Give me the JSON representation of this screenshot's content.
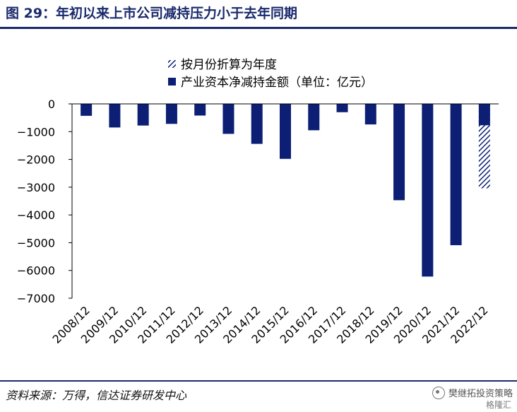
{
  "header": {
    "title": "图 29：年初以来上市公司减持压力小于去年同期"
  },
  "footer": {
    "source": "资料来源：万得，信达证券研发中心",
    "watermark": "樊继拓投资策略",
    "watermark_logo": "格隆汇"
  },
  "colors": {
    "bar": "#0c1f75",
    "title": "#1a2a6c",
    "hatch": "#0c1f75"
  },
  "chart_data": {
    "type": "bar",
    "categories": [
      "2008/12",
      "2009/12",
      "2010/12",
      "2011/12",
      "2012/12",
      "2013/12",
      "2014/12",
      "2015/12",
      "2016/12",
      "2017/12",
      "2018/12",
      "2019/12",
      "2020/12",
      "2021/12",
      "2022/12"
    ],
    "series": [
      {
        "name": "产业资本净减持金额（单位：亿元）",
        "values": [
          -430,
          -850,
          -780,
          -720,
          -420,
          -1080,
          -1440,
          -1980,
          -950,
          -300,
          -740,
          -3470,
          -6220,
          -5090,
          -770
        ]
      },
      {
        "name": "按月份折算为年度",
        "values": [
          null,
          null,
          null,
          null,
          null,
          null,
          null,
          null,
          null,
          null,
          null,
          null,
          null,
          null,
          -3040
        ]
      }
    ],
    "yticks": [
      0,
      -1000,
      -2000,
      -3000,
      -4000,
      -5000,
      -6000,
      -7000
    ],
    "ytick_labels": [
      "0",
      "−1000",
      "−2000",
      "−3000",
      "−4000",
      "−5000",
      "−6000",
      "−7000"
    ],
    "ylim": [
      -7000,
      0
    ],
    "legend_position": "top"
  }
}
